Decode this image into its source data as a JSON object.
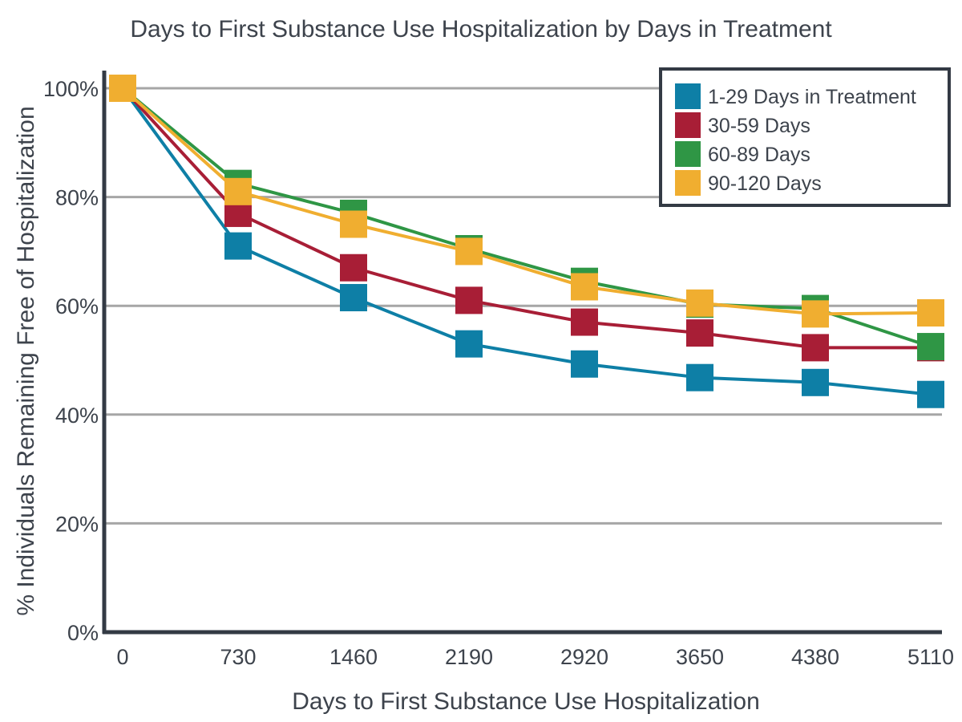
{
  "chart_data": {
    "type": "line",
    "title": "Days to First Substance Use Hospitalization by Days in Treatment",
    "xlabel": "Days to First Substance Use Hospitalization",
    "ylabel": "% Individuals Remaining Free of Hospitalization",
    "x": [
      0,
      730,
      1460,
      2190,
      2920,
      3650,
      4380,
      5110
    ],
    "x_tick_labels": [
      "0",
      "730",
      "1460",
      "2190",
      "2920",
      "3650",
      "4380",
      "5110"
    ],
    "xlim": [
      0,
      5110
    ],
    "ylim": [
      0,
      100
    ],
    "y_ticks": [
      0,
      20,
      40,
      60,
      80,
      100
    ],
    "y_tick_labels": [
      "0%",
      "20%",
      "40%",
      "60%",
      "80%",
      "100%"
    ],
    "grid": "horizontal",
    "legend_position": "top-right",
    "series": [
      {
        "name": "1-29 Days in Treatment",
        "color": "#0e7fa6",
        "values": [
          100,
          71,
          61.5,
          53,
          49.3,
          46.8,
          45.9,
          43.7
        ]
      },
      {
        "name": "30-59 Days",
        "color": "#a81e36",
        "values": [
          100,
          77,
          67,
          61,
          57,
          55,
          52.3,
          52.3
        ]
      },
      {
        "name": "60-89 Days",
        "color": "#2f9645",
        "values": [
          100,
          82.5,
          77,
          70.5,
          64.5,
          60.3,
          59.5,
          52.5
        ]
      },
      {
        "name": "90-120 Days",
        "color": "#f0ae30",
        "values": [
          100,
          81,
          75,
          70,
          63.5,
          60.5,
          58.5,
          58.7
        ]
      }
    ]
  }
}
